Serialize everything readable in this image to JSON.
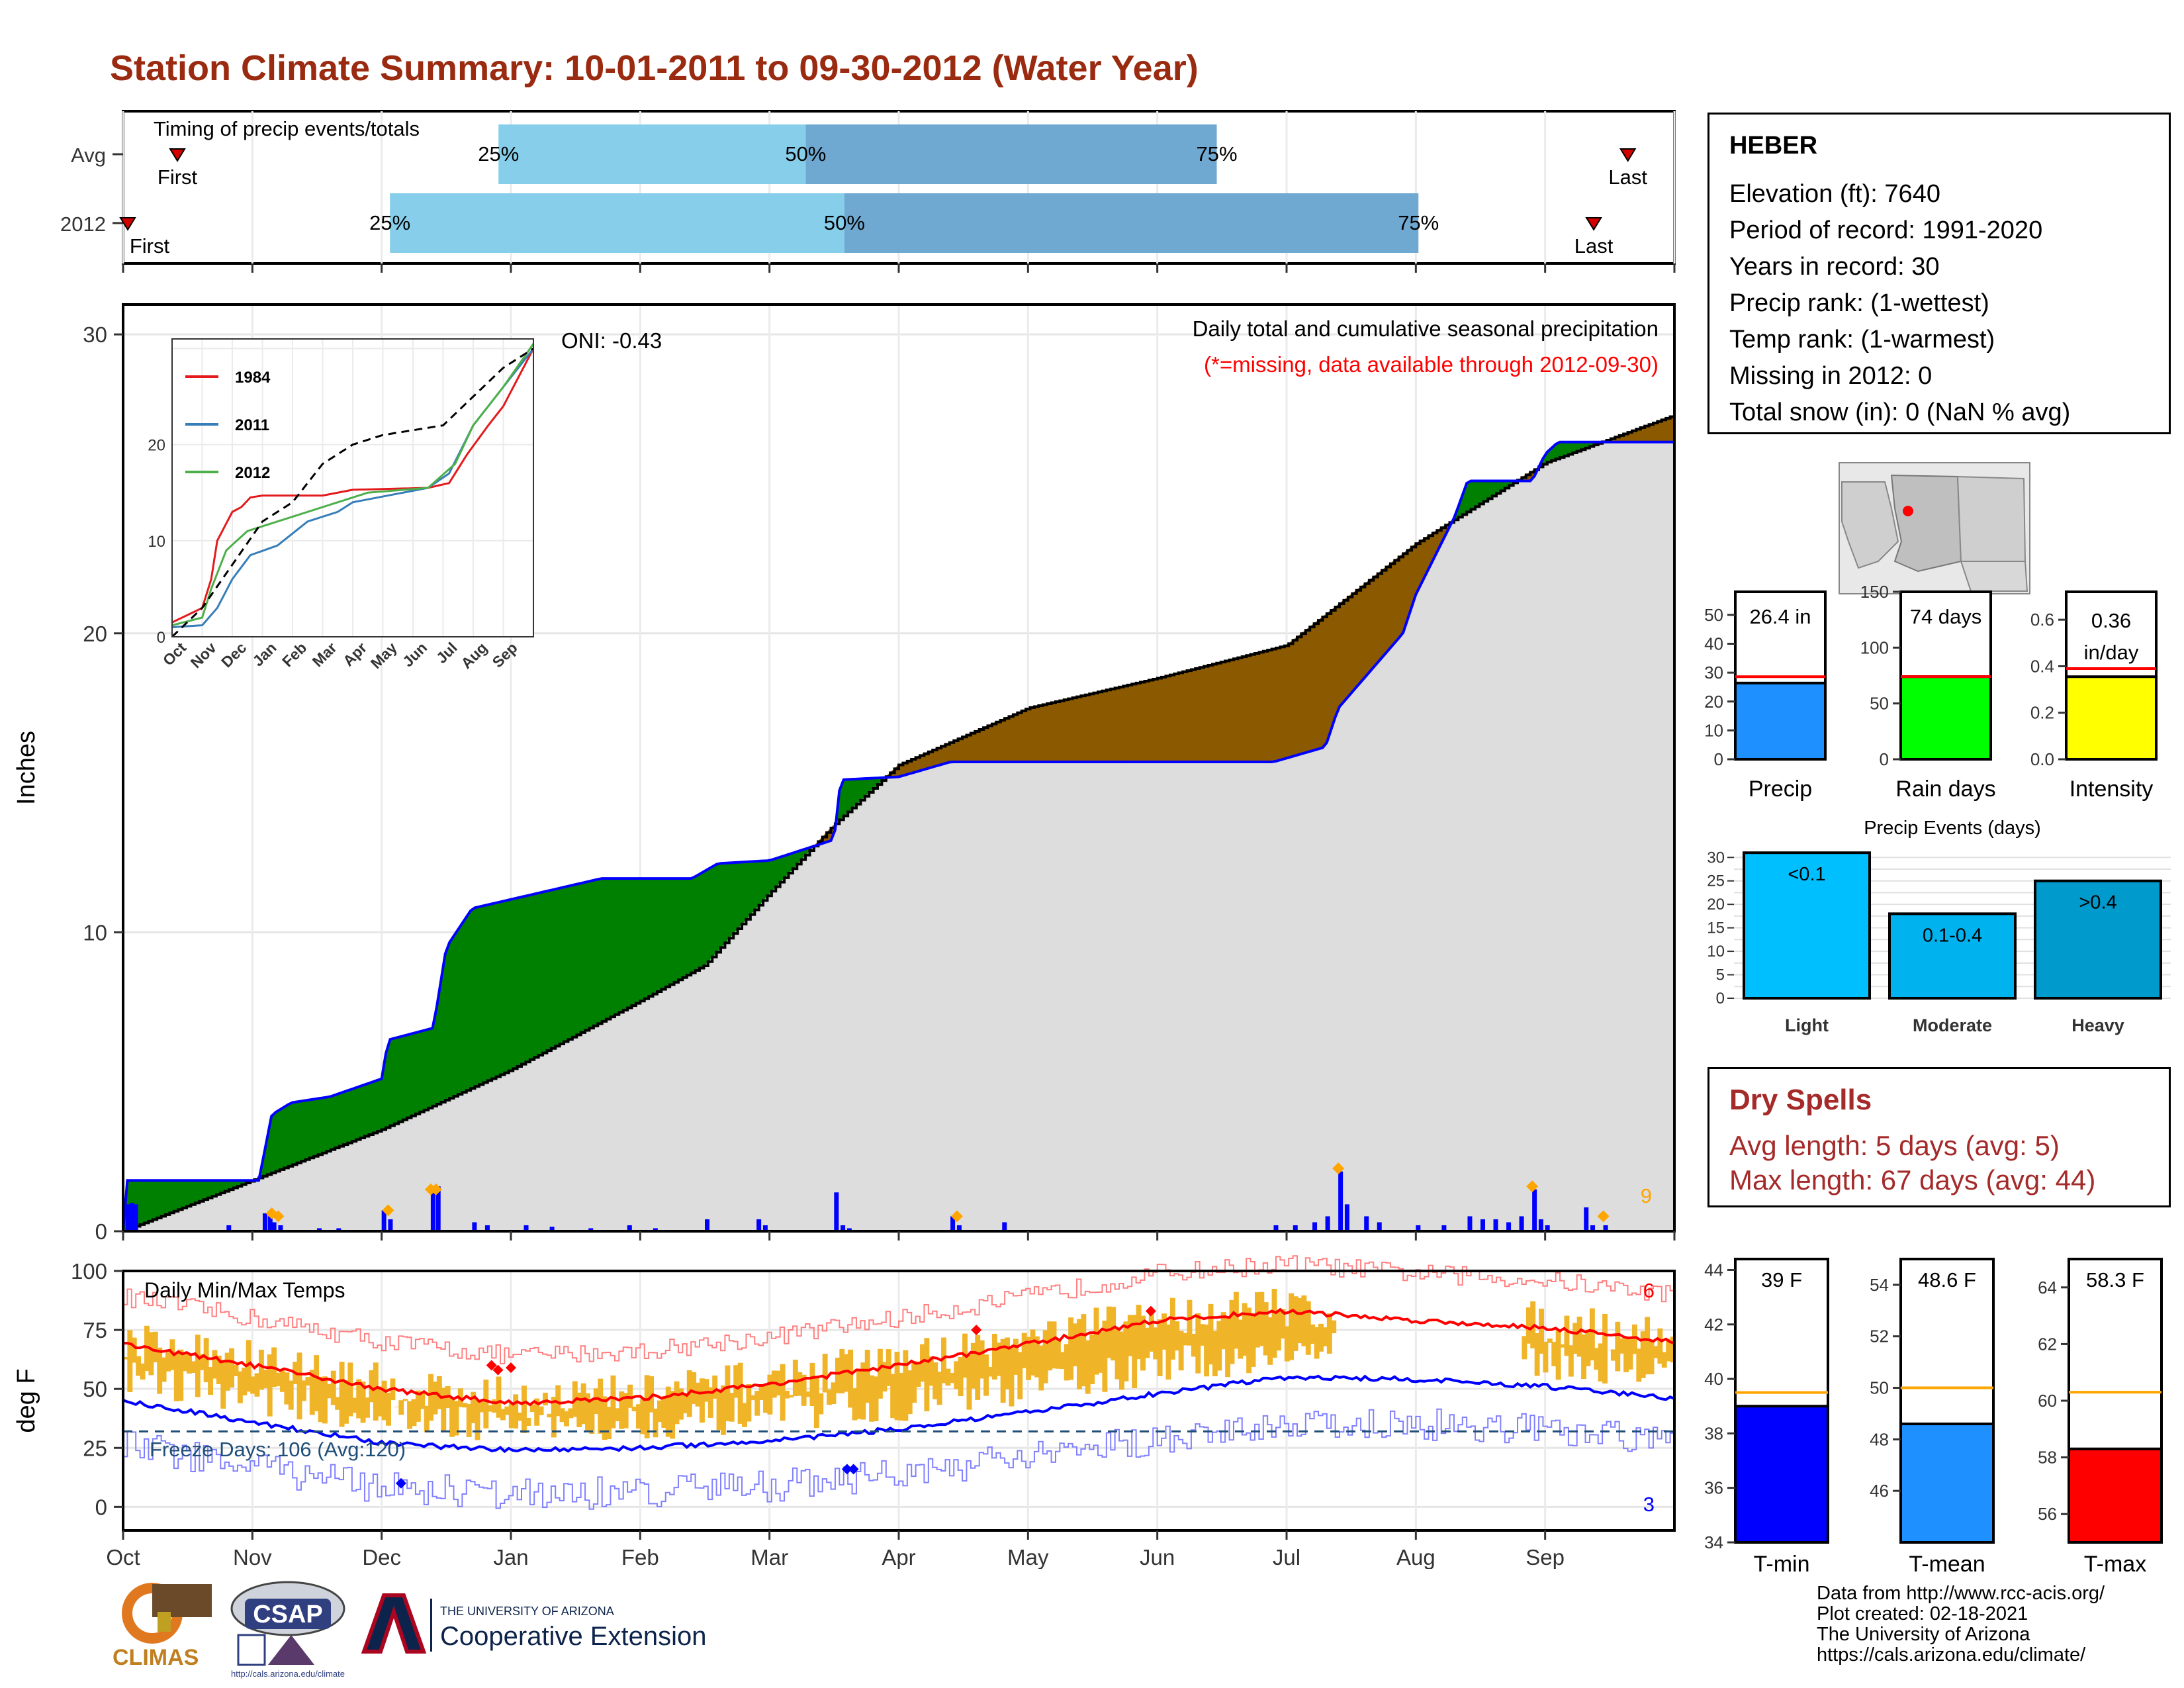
{
  "title": "Station Climate Summary: 10-01-2011 to 09-30-2012 (Water Year)",
  "timing_panel": {
    "label": "Timing of precip events/totals",
    "rows": [
      {
        "label": "Avg",
        "first_label": "First",
        "last_label": "Last",
        "p25": "25%",
        "p50": "50%",
        "p75": "75%",
        "first_frac": 0.035,
        "q25_frac": 0.242,
        "q50_frac": 0.44,
        "q75_frac": 0.705,
        "last_frac": 0.97
      },
      {
        "label": "2012",
        "first_label": "First",
        "last_label": "Last",
        "p25": "25%",
        "p50": "50%",
        "p75": "75%",
        "first_frac": 0.003,
        "q25_frac": 0.172,
        "q50_frac": 0.465,
        "q75_frac": 0.835,
        "last_frac": 0.948
      }
    ],
    "colors": {
      "q1": "#87ceeb",
      "q2": "#6fa8d0",
      "marker": "#d40000"
    }
  },
  "main_chart": {
    "ylabel": "Inches",
    "yticks": [
      "0",
      "10",
      "20",
      "30"
    ],
    "ylim": [
      0,
      31
    ],
    "oni_label": "ONI: -0.43",
    "subtitle": "Daily total and cumulative seasonal precipitation",
    "missing_note": "(*=missing, data available through 2012-09-30)",
    "max_daily_label": "9",
    "months": [
      "Oct",
      "Nov",
      "Dec",
      "Jan",
      "Feb",
      "Mar",
      "Apr",
      "May",
      "Jun",
      "Jul",
      "Aug",
      "Sep"
    ],
    "colors": {
      "above": "#008000",
      "below": "#8b5a00",
      "area": "#dddddd",
      "obs_line": "#0000ff",
      "bars": "#0000ff",
      "diamond": "#ffa500"
    }
  },
  "inset_chart": {
    "yticks": [
      "0",
      "10",
      "20"
    ],
    "months": [
      "Oct",
      "Nov",
      "Dec",
      "Jan",
      "Feb",
      "Mar",
      "Apr",
      "May",
      "Jun",
      "Jul",
      "Aug",
      "Sep"
    ],
    "legend": [
      {
        "name": "1984",
        "color": "#e41a1c"
      },
      {
        "name": "2011",
        "color": "#377eb8"
      },
      {
        "name": "2012",
        "color": "#4daf4a"
      }
    ]
  },
  "temp_chart": {
    "ylabel": "deg F",
    "label": "Daily Min/Max Temps",
    "yticks": [
      "0",
      "25",
      "50",
      "75",
      "100"
    ],
    "freeze_label": "Freeze Days: 106 (Avg:120)",
    "max_count_label": "6",
    "min_count_label": "3",
    "months": [
      "Oct",
      "Nov",
      "Dec",
      "Jan",
      "Feb",
      "Mar",
      "Apr",
      "May",
      "Jun",
      "Jul",
      "Aug",
      "Sep"
    ],
    "colors": {
      "bars": "#f0b428",
      "max_line": "#ff0000",
      "min_line": "#0000ff",
      "rec_max": "#ff8080",
      "rec_min": "#8080ff"
    }
  },
  "station": {
    "name": "HEBER",
    "elevation": "Elevation (ft): 7640",
    "period": "Period of record: 1991-2020",
    "years": "Years in record: 30",
    "precip_rank": "Precip rank:  (1-wettest)",
    "temp_rank": "Temp rank:  (1-warmest)",
    "missing": "Missing in 2012: 0",
    "snow": "Total snow (in): 0 (NaN % avg)"
  },
  "precip_bars": [
    {
      "label": "Precip",
      "value_label": "26.4 in",
      "value": 26.4,
      "avg": 28.6,
      "ymax": 58,
      "yticks": [
        "0",
        "10",
        "20",
        "30",
        "40",
        "50"
      ],
      "color": "#1e90ff"
    },
    {
      "label": "Rain days",
      "value_label": "74 days",
      "value": 74,
      "avg": 74,
      "ymax": 150,
      "yticks": [
        "0",
        "50",
        "100",
        "150"
      ],
      "color": "#00ff00"
    },
    {
      "label": "Intensity",
      "value_label": "0.36 in/day",
      "value_line1": "0.36",
      "value_line2": "in/day",
      "value": 0.355,
      "avg": 0.39,
      "ymax": 0.72,
      "yticks": [
        "0.0",
        "0.2",
        "0.4",
        "0.6"
      ],
      "color": "#ffff00"
    }
  ],
  "precip_events": {
    "title": "Precip Events (days)",
    "yticks": [
      "0",
      "5",
      "10",
      "15",
      "20",
      "25",
      "30"
    ],
    "categories": [
      "Light",
      "Moderate",
      "Heavy"
    ],
    "labels": [
      "<0.1",
      "0.1-0.4",
      ">0.4"
    ],
    "values": [
      31,
      18,
      25
    ],
    "colors": [
      "#00bfff",
      "#00b2ee",
      "#009acd"
    ]
  },
  "dry_spells": {
    "title": "Dry Spells",
    "avg_length": "Avg length: 5 days (avg: 5)",
    "max_length": "Max length: 67 days (avg: 44)"
  },
  "temp_bars": [
    {
      "label": "T-min",
      "value_label": "39 F",
      "value": 39.0,
      "avg": 39.5,
      "ymin": 34,
      "ymax": 44.4,
      "yticks": [
        "34",
        "36",
        "38",
        "40",
        "42",
        "44"
      ],
      "color": "#0000ff"
    },
    {
      "label": "T-mean",
      "value_label": "48.6 F",
      "value": 48.6,
      "avg": 50.0,
      "ymin": 44,
      "ymax": 55,
      "yticks": [
        "46",
        "48",
        "50",
        "52",
        "54"
      ],
      "color": "#1e90ff"
    },
    {
      "label": "T-max",
      "value_label": "58.3 F",
      "value": 58.3,
      "avg": 60.3,
      "ymin": 55,
      "ymax": 65,
      "yticks": [
        "56",
        "58",
        "60",
        "62",
        "64"
      ],
      "color": "#ff0000"
    }
  ],
  "logos": {
    "climas": "CLIMAS",
    "csap": "CSAP",
    "csap_url": "http://cals.arizona.edu/climate",
    "ua_small": "THE UNIVERSITY OF ARIZONA",
    "ua_big": "Cooperative Extension"
  },
  "credits": {
    "line1": "Data from http://www.rcc-acis.org/",
    "line2": "Plot created: 02-18-2021",
    "line3": "The University of Arizona",
    "line4": "https://cals.arizona.edu/climate/"
  }
}
